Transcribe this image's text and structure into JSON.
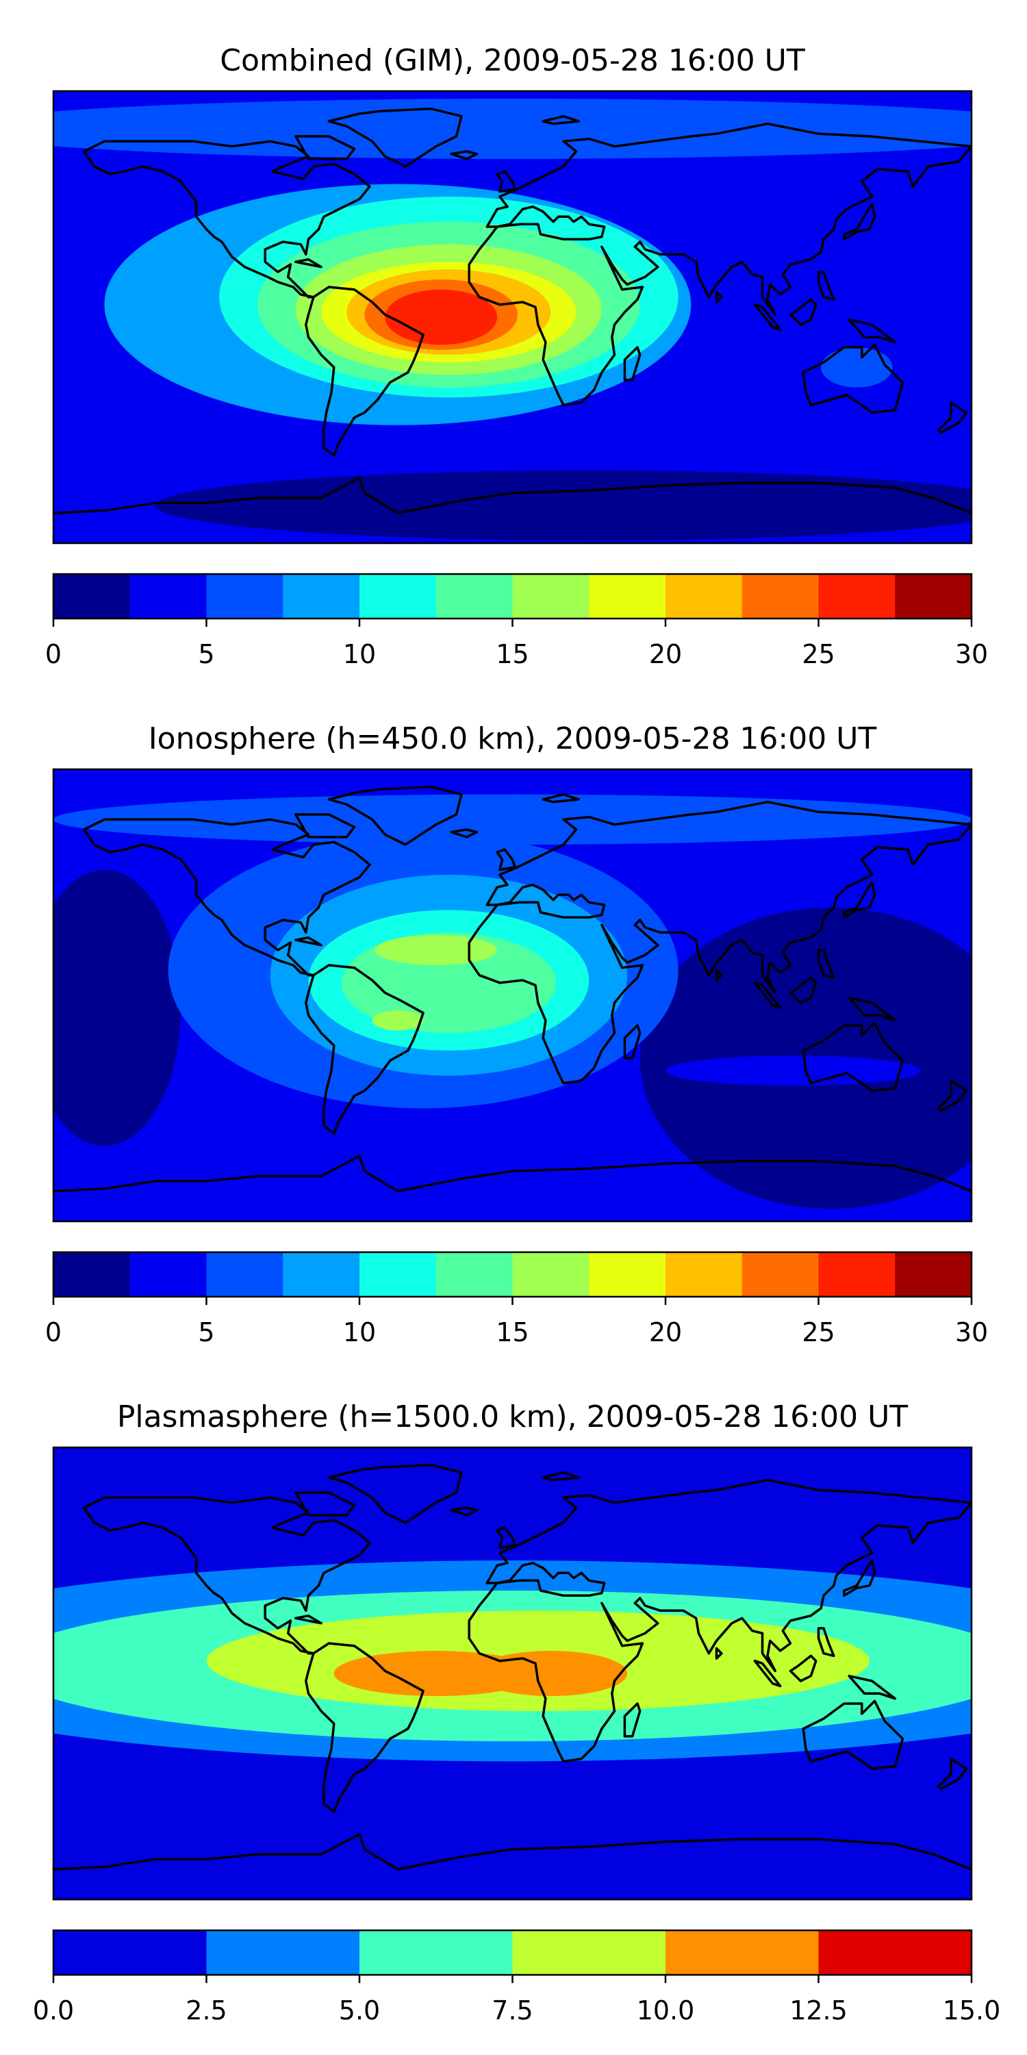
{
  "chart_data": [
    {
      "type": "heatmap",
      "title": "Combined (GIM), 2009-05-28 16:00 UT",
      "colorbar": {
        "ticks": [
          "0",
          "5",
          "10",
          "15",
          "20",
          "25",
          "30"
        ],
        "range": [
          0,
          30
        ],
        "levels": [
          0,
          2.5,
          5,
          7.5,
          10,
          12.5,
          15,
          17.5,
          20,
          22.5,
          25,
          27.5,
          30
        ],
        "colors": [
          "#00008f",
          "#0000f0",
          "#0050ff",
          "#00a0ff",
          "#10ffe8",
          "#50ffa0",
          "#a0ff50",
          "#e8ff10",
          "#ffc000",
          "#ff6c00",
          "#ff2000",
          "#a00000"
        ]
      },
      "field": {
        "background_level": 1,
        "blobs": [
          {
            "lon": 0,
            "lat": 75,
            "rlon": 220,
            "rlat": 12,
            "level": 2
          },
          {
            "lon": -45,
            "lat": 5,
            "rlon": 115,
            "rlat": 48,
            "level": 3
          },
          {
            "lon": -25,
            "lat": 8,
            "rlon": 90,
            "rlat": 40,
            "level": 4
          },
          {
            "lon": -25,
            "lat": 5,
            "rlon": 75,
            "rlat": 33,
            "level": 5
          },
          {
            "lon": -25,
            "lat": 3,
            "rlon": 60,
            "rlat": 26,
            "level": 6
          },
          {
            "lon": -25,
            "lat": 2,
            "rlon": 50,
            "rlat": 20,
            "level": 7
          },
          {
            "lon": -25,
            "lat": 2,
            "rlon": 40,
            "rlat": 17,
            "level": 8
          },
          {
            "lon": -28,
            "lat": 1,
            "rlon": 30,
            "rlat": 14,
            "level": 9
          },
          {
            "lon": -28,
            "lat": 0,
            "rlon": 22,
            "rlat": 11,
            "level": 10
          },
          {
            "lon": 135,
            "lat": -20,
            "rlon": 14,
            "rlat": 8,
            "level": 2
          },
          {
            "lon": 30,
            "lat": -75,
            "rlon": 170,
            "rlat": 14,
            "level": 0
          }
        ]
      }
    },
    {
      "type": "heatmap",
      "title": "Ionosphere  (h=450.0 km), 2009-05-28 16:00 UT",
      "colorbar": {
        "ticks": [
          "0",
          "5",
          "10",
          "15",
          "20",
          "25",
          "30"
        ],
        "range": [
          0,
          30
        ],
        "levels": [
          0,
          2.5,
          5,
          7.5,
          10,
          12.5,
          15,
          17.5,
          20,
          22.5,
          25,
          27.5,
          30
        ],
        "colors": [
          "#00008f",
          "#0000f0",
          "#0050ff",
          "#00a0ff",
          "#10ffe8",
          "#50ffa0",
          "#a0ff50",
          "#e8ff10",
          "#ffc000",
          "#ff6c00",
          "#ff2000",
          "#a00000"
        ]
      },
      "field": {
        "background_level": 1,
        "blobs": [
          {
            "lon": -160,
            "lat": -5,
            "rlon": 30,
            "rlat": 55,
            "level": 0
          },
          {
            "lon": 125,
            "lat": -25,
            "rlon": 75,
            "rlat": 60,
            "level": 0
          },
          {
            "lon": -35,
            "lat": 10,
            "rlon": 100,
            "rlat": 55,
            "level": 2
          },
          {
            "lon": -25,
            "lat": 8,
            "rlon": 70,
            "rlat": 40,
            "level": 3
          },
          {
            "lon": -25,
            "lat": 6,
            "rlon": 55,
            "rlat": 28,
            "level": 4
          },
          {
            "lon": -25,
            "lat": 5,
            "rlon": 42,
            "rlat": 20,
            "level": 5
          },
          {
            "lon": -30,
            "lat": 18,
            "rlon": 24,
            "rlat": 6,
            "level": 6
          },
          {
            "lon": -45,
            "lat": -10,
            "rlon": 10,
            "rlat": 4,
            "level": 6
          },
          {
            "lon": 0,
            "lat": 70,
            "rlon": 180,
            "rlat": 10,
            "level": 2
          },
          {
            "lon": 110,
            "lat": -30,
            "rlon": 50,
            "rlat": 6,
            "level": 1
          }
        ]
      }
    },
    {
      "type": "heatmap",
      "title": "Plasmasphere (h=1500.0 km), 2009-05-28 16:00 UT",
      "colorbar": {
        "ticks": [
          "0.0",
          "2.5",
          "5.0",
          "7.5",
          "10.0",
          "12.5",
          "15.0"
        ],
        "range": [
          0,
          15
        ],
        "levels": [
          0,
          2.5,
          5,
          7.5,
          10,
          12.5,
          15
        ],
        "colors": [
          "#0000e0",
          "#0080ff",
          "#40ffc0",
          "#c0ff30",
          "#ff9000",
          "#e00000"
        ]
      },
      "field": {
        "background_level": 0,
        "blobs": [
          {
            "lon": 0,
            "lat": 5,
            "rlon": 260,
            "rlat": 40,
            "level": 1
          },
          {
            "lon": 0,
            "lat": 3,
            "rlon": 200,
            "rlat": 30,
            "level": 2
          },
          {
            "lon": 10,
            "lat": 5,
            "rlon": 130,
            "rlat": 20,
            "level": 3
          },
          {
            "lon": -30,
            "lat": 0,
            "rlon": 40,
            "rlat": 9,
            "level": 4
          },
          {
            "lon": 15,
            "lat": 0,
            "rlon": 30,
            "rlat": 9,
            "level": 4
          }
        ]
      }
    }
  ]
}
